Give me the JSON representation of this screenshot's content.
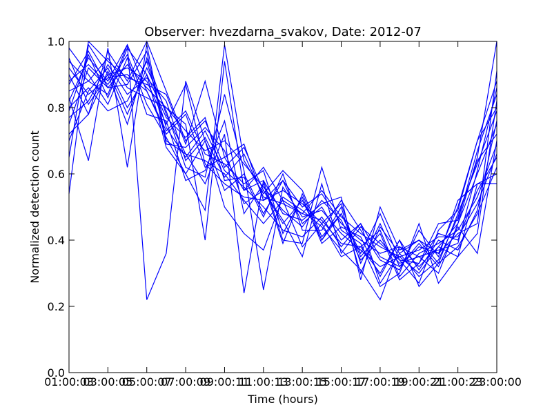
{
  "chart_data": {
    "type": "line",
    "title": "Observer: hvezdarna_svakov, Date: 2012-07",
    "xlabel": "Time (hours)",
    "ylabel": "Normalized detection count",
    "xlim": [
      1,
      23
    ],
    "ylim": [
      0,
      1
    ],
    "x_ticks": [
      1,
      3,
      5,
      7,
      9,
      11,
      13,
      15,
      17,
      19,
      21,
      23
    ],
    "x_tick_labels": [
      "01:00:03",
      "03:00:05",
      "05:00:07",
      "07:00:09",
      "09:00:11",
      "11:00:13",
      "13:00:15",
      "15:00:17",
      "17:00:19",
      "19:00:21",
      "21:00:23",
      "23:00:00"
    ],
    "y_ticks": [
      0,
      0.2,
      0.4,
      0.6,
      0.8,
      1.0
    ],
    "y_tick_labels": [
      "0.0",
      "0.2",
      "0.4",
      "0.6",
      "0.8",
      "1.0"
    ],
    "grid": false,
    "legend": "none",
    "line_color": "#0000ff",
    "series": [
      {
        "x": [
          1,
          2,
          3,
          4,
          5,
          6,
          7,
          8,
          9,
          10,
          11,
          12,
          13,
          14,
          15,
          16,
          17,
          18,
          19,
          20,
          21,
          22,
          23
        ],
        "values": [
          0.82,
          0.95,
          0.88,
          0.99,
          0.85,
          0.72,
          0.78,
          0.62,
          0.65,
          0.55,
          0.62,
          0.52,
          0.48,
          0.55,
          0.47,
          0.42,
          0.38,
          0.35,
          0.3,
          0.38,
          0.45,
          0.6,
          0.75
        ]
      },
      {
        "x": [
          1,
          2,
          3,
          4,
          5,
          6,
          7,
          8,
          9,
          10,
          11,
          12,
          13,
          14,
          15,
          16,
          17,
          18,
          19,
          20,
          21,
          22,
          23
        ],
        "values": [
          0.7,
          0.85,
          0.92,
          0.8,
          0.9,
          0.68,
          0.6,
          0.7,
          0.55,
          0.6,
          0.48,
          0.58,
          0.45,
          0.5,
          0.4,
          0.45,
          0.35,
          0.32,
          0.38,
          0.36,
          0.5,
          0.7,
          0.88
        ]
      },
      {
        "x": [
          1,
          2,
          3,
          4,
          5,
          6,
          7,
          8,
          9,
          10,
          11,
          12,
          13,
          14,
          15,
          16,
          17,
          18,
          19,
          20,
          21,
          22,
          23
        ],
        "values": [
          0.9,
          0.78,
          0.97,
          0.88,
          1.0,
          0.85,
          0.7,
          0.76,
          0.62,
          0.68,
          0.55,
          0.45,
          0.52,
          0.4,
          0.48,
          0.35,
          0.42,
          0.28,
          0.33,
          0.42,
          0.4,
          0.55,
          0.65
        ]
      },
      {
        "x": [
          1,
          2,
          3,
          4,
          5,
          6,
          7,
          8,
          9,
          10,
          11,
          12,
          13,
          14,
          15,
          16,
          17,
          18,
          19,
          20,
          21,
          22,
          23
        ],
        "values": [
          0.54,
          0.99,
          0.9,
          0.75,
          0.95,
          0.78,
          0.66,
          0.64,
          0.6,
          0.52,
          0.45,
          0.52,
          0.38,
          0.45,
          0.35,
          0.38,
          0.3,
          0.4,
          0.26,
          0.33,
          0.38,
          0.48,
          0.62
        ]
      },
      {
        "x": [
          1,
          2,
          3,
          4,
          5,
          6,
          7,
          8,
          9,
          10,
          11,
          12,
          13,
          14,
          15,
          16,
          17,
          18,
          19,
          20,
          21,
          22,
          23
        ],
        "values": [
          0.94,
          0.88,
          0.84,
          0.99,
          0.22,
          0.36,
          0.88,
          0.7,
          0.5,
          0.42,
          0.37,
          0.53,
          0.49,
          0.44,
          0.37,
          0.31,
          0.22,
          0.38,
          0.35,
          0.3,
          0.45,
          0.65,
          1.0
        ]
      },
      {
        "x": [
          1,
          2,
          3,
          4,
          5,
          6,
          7,
          8,
          9,
          10,
          11,
          12,
          13,
          14,
          15,
          16,
          17,
          18,
          19,
          20,
          21,
          22,
          23
        ],
        "values": [
          0.75,
          0.92,
          0.86,
          0.93,
          0.86,
          0.8,
          0.75,
          0.4,
          0.94,
          0.55,
          0.58,
          0.48,
          0.46,
          0.51,
          0.53,
          0.28,
          0.5,
          0.37,
          0.4,
          0.36,
          0.42,
          0.45,
          0.91
        ]
      },
      {
        "x": [
          1,
          2,
          3,
          4,
          5,
          6,
          7,
          8,
          9,
          10,
          11,
          12,
          13,
          14,
          15,
          16,
          17,
          18,
          19,
          20,
          21,
          22,
          23
        ],
        "values": [
          0.83,
          0.64,
          0.98,
          0.62,
          0.99,
          0.7,
          0.66,
          0.57,
          0.72,
          0.24,
          0.58,
          0.4,
          0.39,
          0.62,
          0.43,
          0.39,
          0.26,
          0.3,
          0.45,
          0.27,
          0.35,
          0.57,
          0.6
        ]
      },
      {
        "x": [
          1,
          2,
          3,
          4,
          5,
          6,
          7,
          8,
          9,
          10,
          11,
          12,
          13,
          14,
          15,
          16,
          17,
          18,
          19,
          20,
          21,
          22,
          23
        ],
        "values": [
          0.95,
          0.81,
          0.9,
          0.92,
          0.88,
          0.75,
          0.87,
          0.63,
          0.57,
          0.53,
          0.52,
          0.55,
          0.51,
          0.45,
          0.51,
          0.33,
          0.45,
          0.32,
          0.39,
          0.32,
          0.44,
          0.36,
          0.7
        ]
      },
      {
        "x": [
          1,
          2,
          3,
          4,
          5,
          6,
          7,
          8,
          9,
          10,
          11,
          12,
          13,
          14,
          15,
          16,
          17,
          18,
          19,
          20,
          21,
          22,
          23
        ],
        "values": [
          0.8,
          0.86,
          0.79,
          0.82,
          0.94,
          0.74,
          0.65,
          0.73,
          0.61,
          0.56,
          0.5,
          0.43,
          0.41,
          0.47,
          0.38,
          0.45,
          0.27,
          0.36,
          0.29,
          0.34,
          0.47,
          0.64,
          0.72
        ]
      },
      {
        "x": [
          1,
          2,
          3,
          4,
          5,
          6,
          7,
          8,
          9,
          10,
          11,
          12,
          13,
          14,
          15,
          16,
          17,
          18,
          19,
          20,
          21,
          22,
          23
        ],
        "values": [
          0.65,
          1.0,
          0.94,
          0.89,
          0.87,
          0.84,
          0.69,
          0.88,
          0.65,
          0.69,
          0.52,
          0.58,
          0.5,
          0.54,
          0.45,
          0.4,
          0.36,
          0.38,
          0.32,
          0.38,
          0.35,
          0.42,
          0.82
        ]
      },
      {
        "x": [
          1,
          2,
          3,
          4,
          5,
          6,
          7,
          8,
          9,
          10,
          11,
          12,
          13,
          14,
          15,
          16,
          17,
          18,
          19,
          20,
          21,
          22,
          23
        ],
        "values": [
          0.88,
          0.93,
          0.87,
          0.96,
          0.81,
          0.71,
          0.6,
          0.49,
          0.99,
          0.64,
          0.54,
          0.61,
          0.55,
          0.41,
          0.48,
          0.36,
          0.48,
          0.34,
          0.27,
          0.43,
          0.49,
          0.7,
          0.8
        ]
      },
      {
        "x": [
          1,
          2,
          3,
          4,
          5,
          6,
          7,
          8,
          9,
          10,
          11,
          12,
          13,
          14,
          15,
          16,
          17,
          18,
          19,
          20,
          21,
          22,
          23
        ],
        "values": [
          0.72,
          0.78,
          0.91,
          0.78,
          0.92,
          0.79,
          0.62,
          0.59,
          0.84,
          0.61,
          0.25,
          0.56,
          0.47,
          0.49,
          0.42,
          0.37,
          0.32,
          0.35,
          0.37,
          0.41,
          0.41,
          0.51,
          0.66
        ]
      },
      {
        "x": [
          1,
          2,
          3,
          4,
          5,
          6,
          7,
          8,
          9,
          10,
          11,
          12,
          13,
          14,
          15,
          16,
          17,
          18,
          19,
          20,
          21,
          22,
          23
        ],
        "values": [
          0.85,
          0.88,
          0.95,
          0.86,
          0.83,
          0.8,
          0.73,
          0.67,
          0.7,
          0.63,
          0.56,
          0.49,
          0.44,
          0.52,
          0.46,
          0.34,
          0.4,
          0.33,
          0.35,
          0.37,
          0.39,
          0.61,
          0.86
        ]
      },
      {
        "x": [
          1,
          2,
          3,
          4,
          5,
          6,
          7,
          8,
          9,
          10,
          11,
          12,
          13,
          14,
          15,
          16,
          17,
          18,
          19,
          20,
          21,
          22,
          23
        ],
        "values": [
          0.79,
          0.96,
          0.83,
          0.98,
          0.9,
          0.77,
          0.71,
          0.77,
          0.58,
          0.59,
          0.47,
          0.6,
          0.43,
          0.43,
          0.52,
          0.43,
          0.34,
          0.31,
          0.43,
          0.35,
          0.52,
          0.57,
          0.57
        ]
      },
      {
        "x": [
          1,
          2,
          3,
          4,
          5,
          6,
          7,
          8,
          9,
          10,
          11,
          12,
          13,
          14,
          15,
          16,
          17,
          18,
          19,
          20,
          21,
          22,
          23
        ],
        "values": [
          0.92,
          0.84,
          0.89,
          0.9,
          0.85,
          0.73,
          0.79,
          0.66,
          0.63,
          0.57,
          0.61,
          0.42,
          0.53,
          0.39,
          0.44,
          0.41,
          0.29,
          0.4,
          0.31,
          0.4,
          0.37,
          0.49,
          0.76
        ]
      },
      {
        "x": [
          1,
          2,
          3,
          4,
          5,
          6,
          7,
          8,
          9,
          10,
          11,
          12,
          13,
          14,
          15,
          16,
          17,
          18,
          19,
          20,
          21,
          22,
          23
        ],
        "values": [
          0.87,
          0.97,
          0.86,
          0.87,
          0.97,
          0.69,
          0.68,
          0.74,
          0.67,
          0.51,
          0.55,
          0.46,
          0.35,
          0.57,
          0.36,
          0.44,
          0.39,
          0.34,
          0.33,
          0.45,
          0.46,
          0.67,
          0.84
        ]
      },
      {
        "x": [
          1,
          2,
          3,
          4,
          5,
          6,
          7,
          8,
          9,
          10,
          11,
          12,
          13,
          14,
          15,
          16,
          17,
          18,
          19,
          20,
          21,
          22,
          23
        ],
        "values": [
          0.77,
          0.82,
          0.93,
          0.84,
          0.89,
          0.82,
          0.64,
          0.71,
          0.59,
          0.66,
          0.53,
          0.51,
          0.48,
          0.46,
          0.39,
          0.38,
          0.43,
          0.29,
          0.36,
          0.39,
          0.43,
          0.53,
          0.69
        ]
      },
      {
        "x": [
          1,
          2,
          3,
          4,
          5,
          6,
          7,
          8,
          9,
          10,
          11,
          12,
          13,
          14,
          15,
          16,
          17,
          18,
          19,
          20,
          21,
          22,
          23
        ],
        "values": [
          0.98,
          0.9,
          0.81,
          0.95,
          0.78,
          0.76,
          0.58,
          0.61,
          0.76,
          0.48,
          0.57,
          0.39,
          0.54,
          0.4,
          0.5,
          0.3,
          0.44,
          0.36,
          0.4,
          0.33,
          0.48,
          0.63,
          0.79
        ]
      }
    ]
  }
}
